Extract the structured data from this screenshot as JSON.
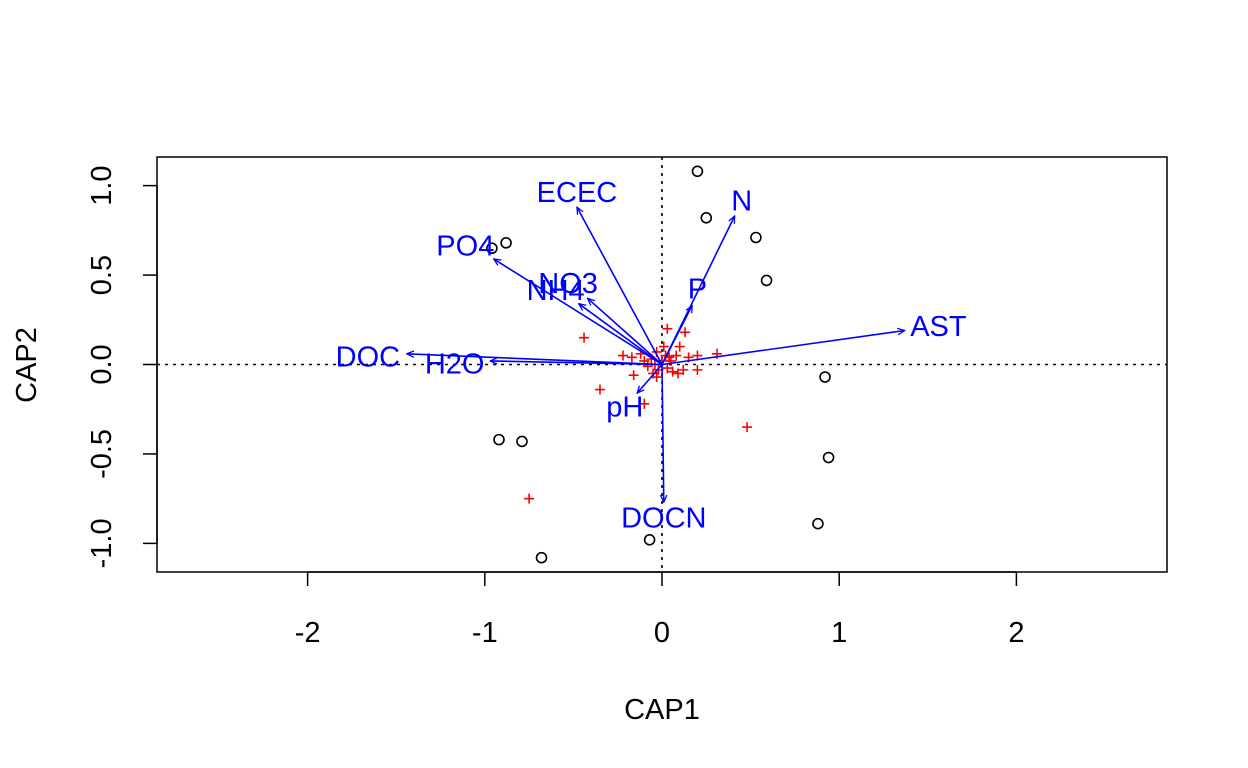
{
  "chart_data": {
    "type": "scatter",
    "title": "",
    "xlabel": "CAP1",
    "ylabel": "CAP2",
    "xlim": [
      -2.85,
      2.85
    ],
    "ylim": [
      -1.16,
      1.16
    ],
    "grid": false,
    "x_ticks": [
      -2,
      -1,
      0,
      1,
      2
    ],
    "y_ticks": [
      -1.0,
      -0.5,
      0.0,
      0.5,
      1.0
    ],
    "x_tick_labels": [
      "-2",
      "-1",
      "0",
      "1",
      "2"
    ],
    "y_tick_labels": [
      "-1.0",
      "-0.5",
      "0.0",
      "0.5",
      "1.0"
    ],
    "reference_lines": {
      "x": 0,
      "y": 0,
      "style": "dotted"
    },
    "colors": {
      "sites": "#000000",
      "species": "#ff0000",
      "biplot": "#0000ff"
    },
    "sites": [
      {
        "x": 0.2,
        "y": 1.08
      },
      {
        "x": 0.25,
        "y": 0.82
      },
      {
        "x": 0.53,
        "y": 0.71
      },
      {
        "x": 0.59,
        "y": 0.47
      },
      {
        "x": -0.88,
        "y": 0.68
      },
      {
        "x": -0.96,
        "y": 0.65
      },
      {
        "x": 0.92,
        "y": -0.07
      },
      {
        "x": 0.94,
        "y": -0.52
      },
      {
        "x": 0.88,
        "y": -0.89
      },
      {
        "x": -0.92,
        "y": -0.42
      },
      {
        "x": -0.79,
        "y": -0.43
      },
      {
        "x": -0.68,
        "y": -1.08
      },
      {
        "x": -0.07,
        "y": -0.98
      }
    ],
    "species": [
      {
        "x": -0.44,
        "y": 0.15
      },
      {
        "x": -0.22,
        "y": 0.05
      },
      {
        "x": -0.17,
        "y": 0.04
      },
      {
        "x": -0.12,
        "y": 0.06
      },
      {
        "x": -0.1,
        "y": 0.02
      },
      {
        "x": -0.08,
        "y": -0.01
      },
      {
        "x": -0.06,
        "y": 0.03
      },
      {
        "x": -0.04,
        "y": 0.0
      },
      {
        "x": -0.03,
        "y": 0.07
      },
      {
        "x": -0.02,
        "y": -0.03
      },
      {
        "x": 0.0,
        "y": 0.02
      },
      {
        "x": 0.01,
        "y": 0.1
      },
      {
        "x": 0.02,
        "y": 0.05
      },
      {
        "x": 0.03,
        "y": -0.02
      },
      {
        "x": 0.04,
        "y": 0.04
      },
      {
        "x": 0.05,
        "y": 0.02
      },
      {
        "x": 0.06,
        "y": -0.04
      },
      {
        "x": 0.08,
        "y": 0.05
      },
      {
        "x": 0.1,
        "y": 0.1
      },
      {
        "x": 0.12,
        "y": -0.03
      },
      {
        "x": 0.13,
        "y": 0.18
      },
      {
        "x": 0.15,
        "y": 0.04
      },
      {
        "x": 0.2,
        "y": 0.05
      },
      {
        "x": 0.2,
        "y": -0.03
      },
      {
        "x": 0.31,
        "y": 0.06
      },
      {
        "x": 0.03,
        "y": 0.2
      },
      {
        "x": -0.05,
        "y": -0.05
      },
      {
        "x": -0.16,
        "y": -0.06
      },
      {
        "x": -0.35,
        "y": -0.14
      },
      {
        "x": -0.1,
        "y": -0.22
      },
      {
        "x": -0.03,
        "y": -0.07
      },
      {
        "x": 0.09,
        "y": -0.05
      },
      {
        "x": 0.48,
        "y": -0.35
      },
      {
        "x": -0.75,
        "y": -0.75
      }
    ],
    "biplot_arrows": [
      {
        "name": "ECEC",
        "x": -0.48,
        "y": 0.88,
        "label_x": -0.48,
        "label_y": 0.96
      },
      {
        "name": "N",
        "x": 0.41,
        "y": 0.83,
        "label_x": 0.45,
        "label_y": 0.91
      },
      {
        "name": "PO4",
        "x": -0.95,
        "y": 0.59,
        "label_x": -1.11,
        "label_y": 0.66
      },
      {
        "name": "NO3",
        "x": -0.42,
        "y": 0.37,
        "label_x": -0.53,
        "label_y": 0.45
      },
      {
        "name": "NH4",
        "x": -0.47,
        "y": 0.34,
        "label_x": -0.6,
        "label_y": 0.41
      },
      {
        "name": "P",
        "x": 0.17,
        "y": 0.33,
        "label_x": 0.2,
        "label_y": 0.42
      },
      {
        "name": "AST",
        "x": 1.37,
        "y": 0.19,
        "label_x": 1.56,
        "label_y": 0.21
      },
      {
        "name": "DOC",
        "x": -1.44,
        "y": 0.06,
        "label_x": -1.66,
        "label_y": 0.04
      },
      {
        "name": "H2O",
        "x": -0.97,
        "y": 0.02,
        "label_x": -1.17,
        "label_y": 0.0
      },
      {
        "name": "pH",
        "x": -0.14,
        "y": -0.16,
        "label_x": -0.21,
        "label_y": -0.24
      },
      {
        "name": "DOCN",
        "x": 0.01,
        "y": -0.77,
        "label_x": 0.01,
        "label_y": -0.86
      }
    ]
  }
}
